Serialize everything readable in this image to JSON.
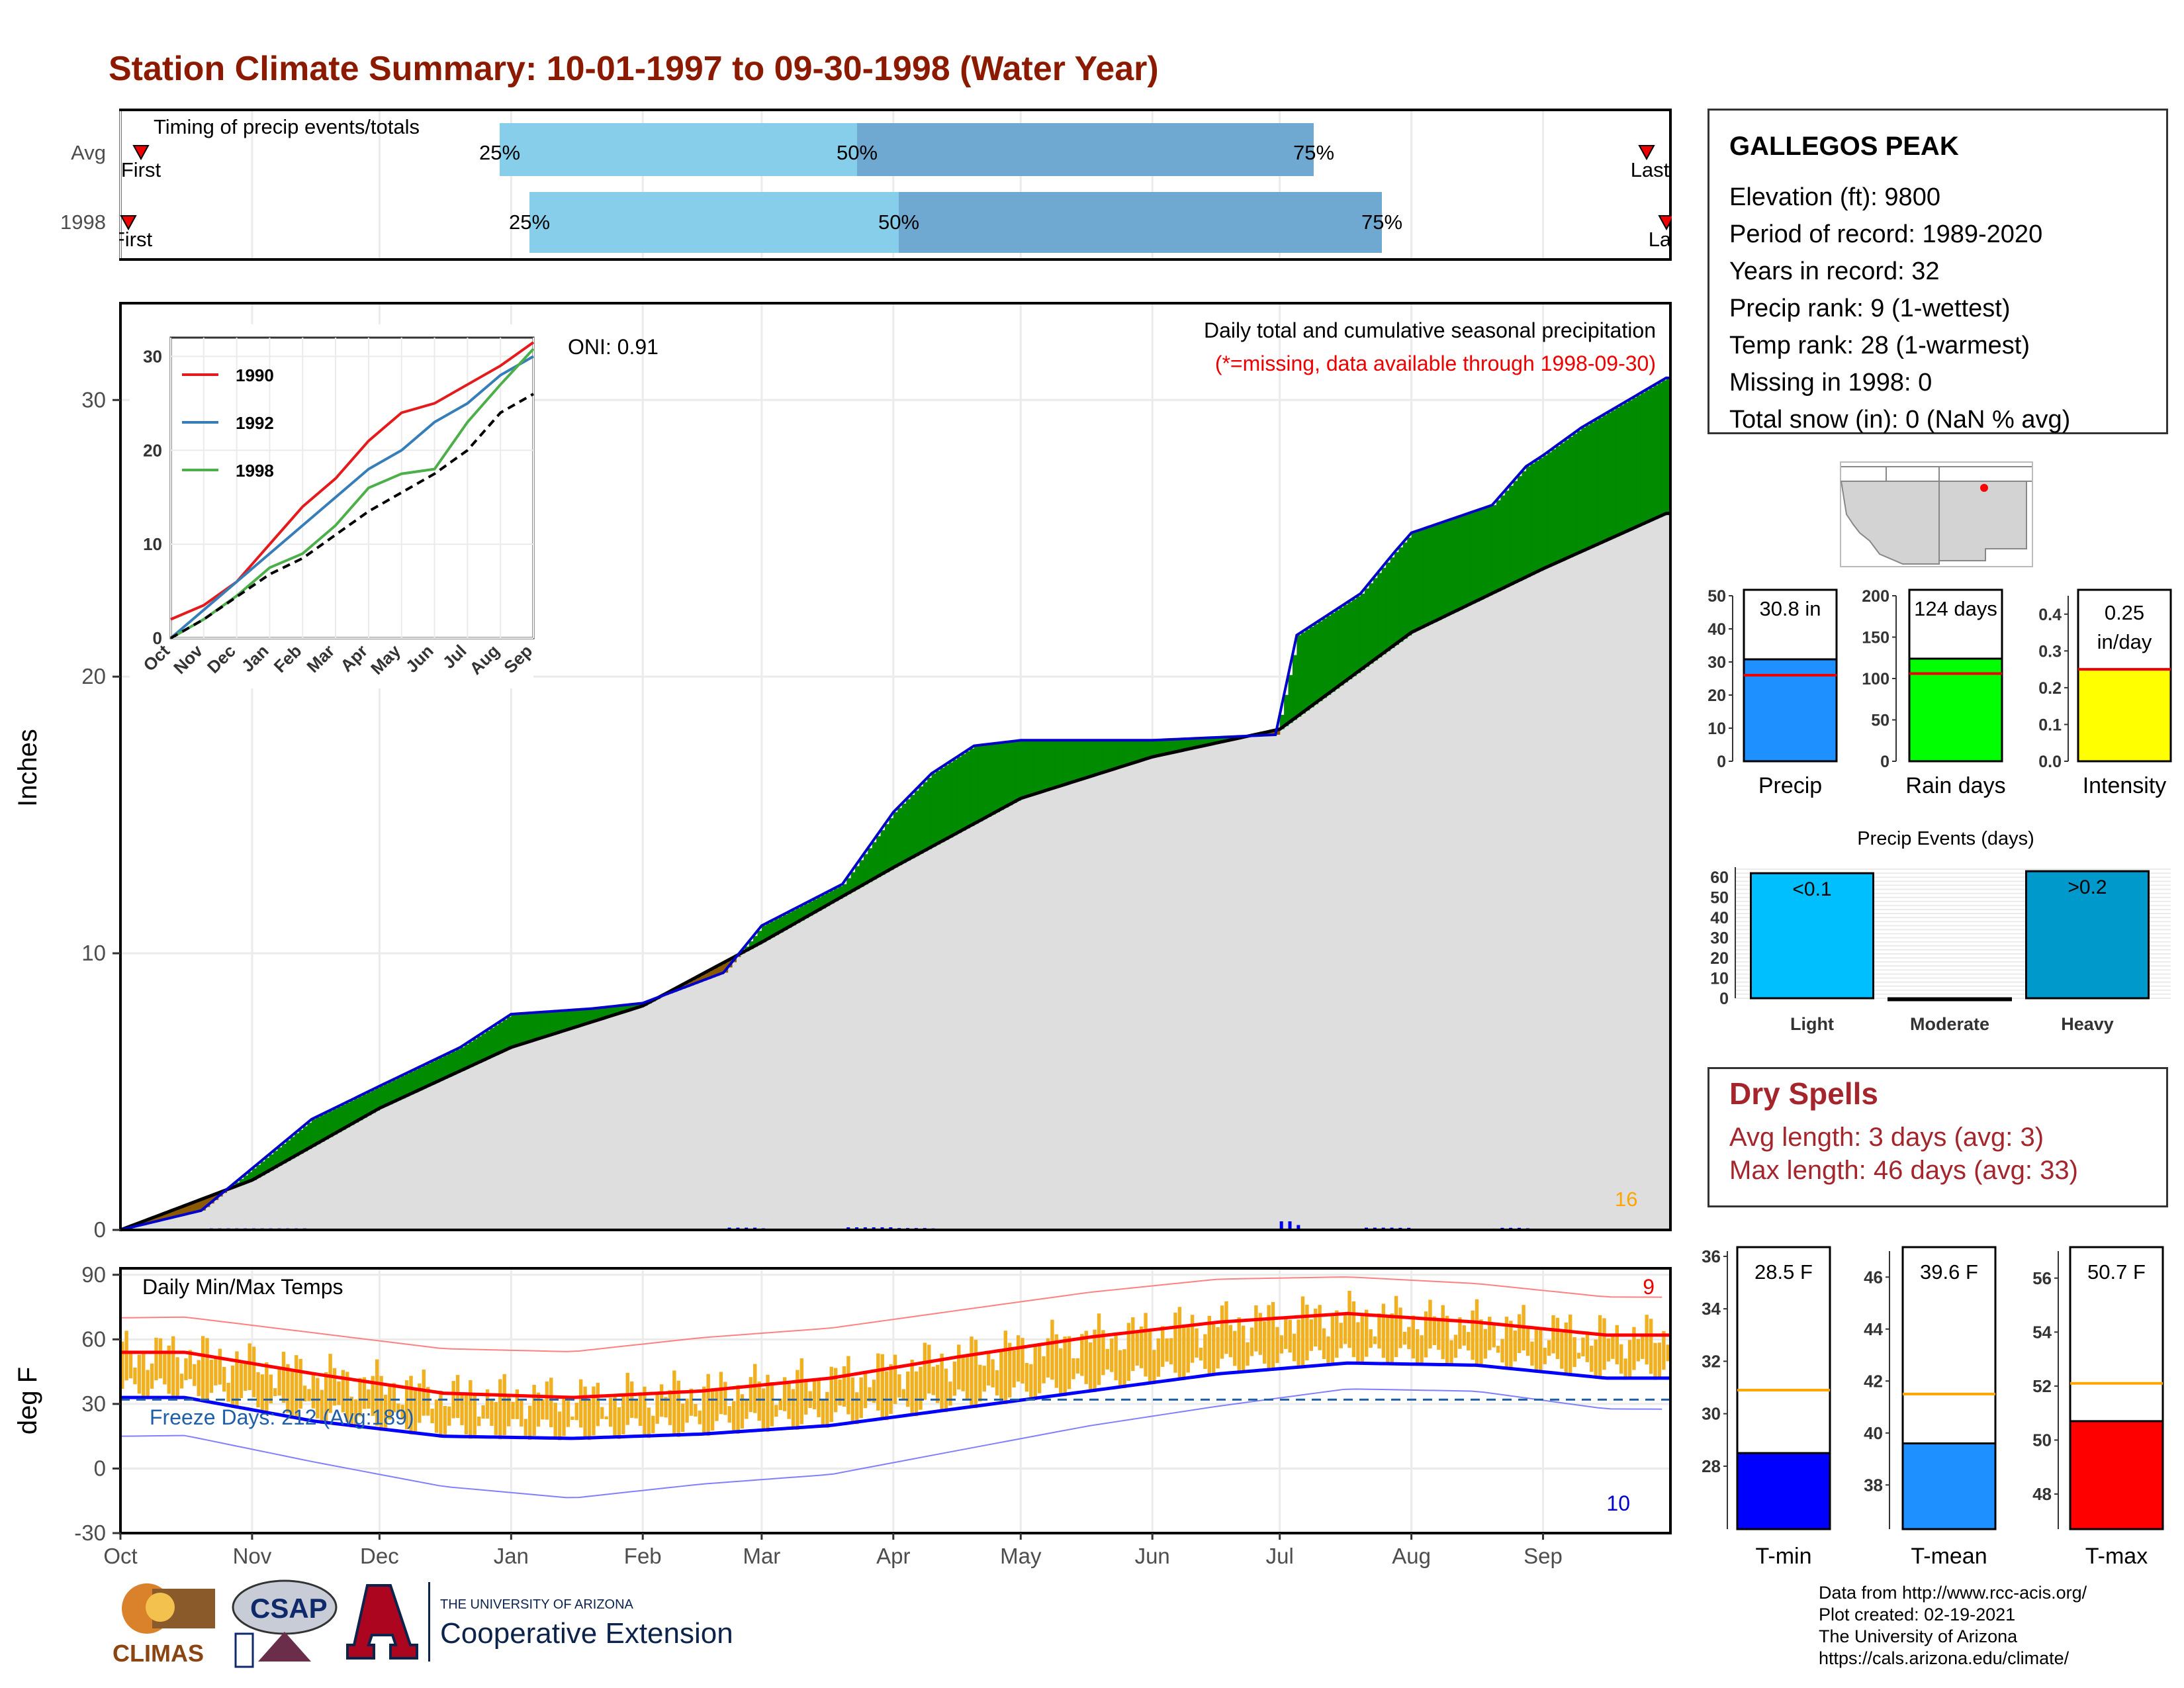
{
  "title": "Station Climate Summary: 10-01-1997 to 09-30-1998 (Water Year)",
  "timing": {
    "label": "Timing of precip events/totals",
    "rows": [
      {
        "name": "Avg",
        "first_label": "First",
        "last_label": "Last",
        "p25": "25%",
        "p50": "50%",
        "p75": "75%"
      },
      {
        "name": "1998",
        "first_label": "First",
        "last_label": "Last",
        "p25": "25%",
        "p50": "50%",
        "p75": "75%"
      }
    ]
  },
  "precip_panel": {
    "ylabel": "Inches",
    "yticks": [
      "0",
      "10",
      "20",
      "30"
    ],
    "header": "Daily total and cumulative seasonal precipitation",
    "subheader": "(*=missing, data available through 1998-09-30)",
    "oni": "ONI: 0.91",
    "max_day_label": "16"
  },
  "inset": {
    "yticks": [
      "0",
      "10",
      "20",
      "30"
    ],
    "xticks": [
      "Oct",
      "Nov",
      "Dec",
      "Jan",
      "Feb",
      "Mar",
      "Apr",
      "May",
      "Jun",
      "Jul",
      "Aug",
      "Sep"
    ],
    "legend": [
      {
        "name": "1990",
        "color": "#e41a1c"
      },
      {
        "name": "1992",
        "color": "#377eb8"
      },
      {
        "name": "1998",
        "color": "#4daf4a"
      }
    ]
  },
  "temp_panel": {
    "ylabel": "deg F",
    "label": "Daily Min/Max Temps",
    "freeze": "Freeze Days: 212 (Avg:189)",
    "yticks": [
      "-30",
      "0",
      "30",
      "60",
      "90"
    ],
    "record_high_count": "9",
    "record_low_count": "10"
  },
  "xaxis": {
    "months": [
      "Oct",
      "Nov",
      "Dec",
      "Jan",
      "Feb",
      "Mar",
      "Apr",
      "May",
      "Jun",
      "Jul",
      "Aug",
      "Sep"
    ]
  },
  "station": {
    "name": "GALLEGOS PEAK",
    "rows": [
      "Elevation (ft): 9800",
      "Period of record: 1989-2020",
      "Years in record: 32",
      "Precip rank: 9 (1-wettest)",
      "Temp rank: 28 (1-warmest)",
      "Missing in 1998: 0",
      "Total snow (in): 0 (NaN % avg)"
    ]
  },
  "summary_bars": [
    {
      "name": "Precip",
      "value_label": "30.8 in",
      "value": 30.8,
      "avg": 26,
      "ymax": 50,
      "ticks": [
        "0",
        "10",
        "20",
        "30",
        "40",
        "50"
      ],
      "color": "#1e90ff"
    },
    {
      "name": "Rain days",
      "value_label": "124 days",
      "value": 124,
      "avg": 106,
      "ymax": 200,
      "ticks": [
        "0",
        "50",
        "100",
        "150",
        "200"
      ],
      "color": "#00ff00"
    },
    {
      "name": "Intensity",
      "value_label": "0.25 in/day",
      "value": 0.25,
      "avg": 0.25,
      "ymax": 0.45,
      "ticks": [
        "0.0",
        "0.1",
        "0.2",
        "0.3",
        "0.4"
      ],
      "color": "#ffff00"
    }
  ],
  "events": {
    "title": "Precip Events (days)",
    "ticks": [
      "0",
      "10",
      "20",
      "30",
      "40",
      "50",
      "60"
    ],
    "bars": [
      {
        "name": "Light",
        "label": "<0.1",
        "value": 62,
        "color": "#00bfff"
      },
      {
        "name": "Moderate",
        "label": "",
        "value": 0,
        "color": "#4682b4"
      },
      {
        "name": "Heavy",
        "label": ">0.2",
        "value": 63,
        "color": "#0099cc"
      }
    ]
  },
  "dry_spells": {
    "title": "Dry Spells",
    "avg": "Avg length: 3 days (avg: 3)",
    "max": "Max length: 46 days (avg: 33)"
  },
  "temp_bars": [
    {
      "name": "T-min",
      "value_label": "28.5 F",
      "value": 28.5,
      "avg": 30.9,
      "ymin": 25.6,
      "ymax": 36.2,
      "ticks": [
        "28",
        "30",
        "32",
        "34",
        "36"
      ],
      "color": "#0000ff"
    },
    {
      "name": "T-mean",
      "value_label": "39.6 F",
      "value": 39.6,
      "avg": 41.5,
      "ymin": 36.3,
      "ymax": 47.0,
      "ticks": [
        "38",
        "40",
        "42",
        "44",
        "46"
      ],
      "color": "#1e90ff"
    },
    {
      "name": "T-max",
      "value_label": "50.7 F",
      "value": 50.7,
      "avg": 52.1,
      "ymin": 46.7,
      "ymax": 57.0,
      "ticks": [
        "48",
        "50",
        "52",
        "54",
        "56"
      ],
      "color": "#ff0000"
    }
  ],
  "credits": [
    "Data from http://www.rcc-acis.org/",
    "Plot created: 02-19-2021",
    "The University of Arizona",
    "https://cals.arizona.edu/climate/"
  ],
  "logos": {
    "climas": "CLIMAS",
    "csap": "CSAP",
    "ua_small": "THE UNIVERSITY OF ARIZONA",
    "ua_big": "Cooperative Extension"
  },
  "chart_data": [
    {
      "type": "area",
      "title": "Daily total and cumulative seasonal precipitation",
      "ylabel": "Inches",
      "ylim": [
        0,
        33.5
      ],
      "x_unit": "month",
      "series": [
        {
          "name": "1998",
          "color": "#0000cd",
          "x": [
            "1997-10-01",
            "1997-10-20",
            "1997-11-15",
            "1997-12-01",
            "1997-12-20",
            "1998-01-01",
            "1998-01-20",
            "1998-02-01",
            "1998-02-20",
            "1998-03-01",
            "1998-03-20",
            "1998-04-01",
            "1998-04-10",
            "1998-04-20",
            "1998-05-01",
            "1998-06-01",
            "1998-06-30",
            "1998-07-05",
            "1998-07-20",
            "1998-07-28",
            "1998-08-01",
            "1998-08-20",
            "1998-08-28",
            "1998-09-01",
            "1998-09-10",
            "1998-09-30"
          ],
          "values": [
            0,
            0.7,
            4.0,
            5.2,
            6.6,
            7.8,
            8.0,
            8.2,
            9.3,
            11.0,
            12.5,
            15.1,
            16.5,
            17.5,
            17.7,
            17.7,
            17.9,
            21.5,
            23.0,
            24.5,
            25.2,
            26.2,
            27.6,
            28.0,
            29.0,
            30.8
          ]
        },
        {
          "name": "Average",
          "color": "#000000",
          "x": [
            "1997-10-01",
            "1997-11-01",
            "1997-12-01",
            "1998-01-01",
            "1998-02-01",
            "1998-03-01",
            "1998-04-01",
            "1998-05-01",
            "1998-06-01",
            "1998-07-01",
            "1998-08-01",
            "1998-09-01",
            "1998-09-30"
          ],
          "values": [
            0,
            1.8,
            4.4,
            6.6,
            8.1,
            10.4,
            13.1,
            15.6,
            17.1,
            18.1,
            21.6,
            23.9,
            25.9
          ]
        }
      ],
      "daily_max": 16
    },
    {
      "type": "line",
      "title": "Daily Min/Max Temps",
      "ylabel": "deg F",
      "ylim": [
        -30,
        93
      ],
      "x": [
        "Oct",
        "Nov",
        "Dec",
        "Jan",
        "Feb",
        "Mar",
        "Apr",
        "May",
        "Jun",
        "Jul",
        "Aug",
        "Sep"
      ],
      "series": [
        {
          "name": "Avg max",
          "color": "#ff0000",
          "values": [
            54,
            44,
            35,
            33,
            36,
            42,
            52,
            61,
            68,
            72,
            68,
            62
          ]
        },
        {
          "name": "Avg min",
          "color": "#0000ff",
          "values": [
            33,
            22,
            15,
            14,
            16,
            20,
            28,
            36,
            44,
            49,
            48,
            42
          ]
        },
        {
          "name": "Record max",
          "color": "#ff8080",
          "values": [
            70,
            62,
            54,
            52,
            58,
            62,
            70,
            78,
            84,
            85,
            82,
            76
          ]
        },
        {
          "name": "Record min",
          "color": "#8080ff",
          "values": [
            15,
            2,
            -10,
            -16,
            -10,
            -6,
            5,
            16,
            25,
            33,
            32,
            24
          ]
        }
      ],
      "freeze_line": 32
    },
    {
      "type": "line",
      "title": "",
      "ylim": [
        0,
        32
      ],
      "x": [
        "Oct",
        "Nov",
        "Dec",
        "Jan",
        "Feb",
        "Mar",
        "Apr",
        "May",
        "Jun",
        "Jul",
        "Aug",
        "Sep"
      ],
      "series": [
        {
          "name": "1990",
          "values": [
            2,
            3.5,
            6,
            10,
            14,
            17,
            21,
            24,
            25,
            27,
            29,
            31.5
          ]
        },
        {
          "name": "1992",
          "values": [
            0,
            3,
            6,
            9,
            12,
            15,
            18,
            20,
            23,
            25,
            28,
            30
          ]
        },
        {
          "name": "1998",
          "values": [
            0,
            2,
            4.5,
            7.5,
            9,
            12,
            16,
            17.5,
            18,
            23,
            27,
            30.8
          ]
        },
        {
          "name": "Average",
          "values": [
            0,
            2,
            4.4,
            6.8,
            8.5,
            11,
            13.5,
            15.5,
            17.5,
            20,
            24,
            26
          ]
        }
      ]
    },
    {
      "type": "bar",
      "categories": [
        "Precip",
        "Rain days",
        "Intensity"
      ],
      "values": [
        30.8,
        124,
        0.25
      ]
    },
    {
      "type": "bar",
      "title": "Precip Events (days)",
      "categories": [
        "Light",
        "Moderate",
        "Heavy"
      ],
      "values": [
        62,
        0,
        63
      ],
      "ylim": [
        0,
        65
      ]
    },
    {
      "type": "bar",
      "categories": [
        "T-min",
        "T-mean",
        "T-max"
      ],
      "values": [
        28.5,
        39.6,
        50.7
      ]
    }
  ]
}
